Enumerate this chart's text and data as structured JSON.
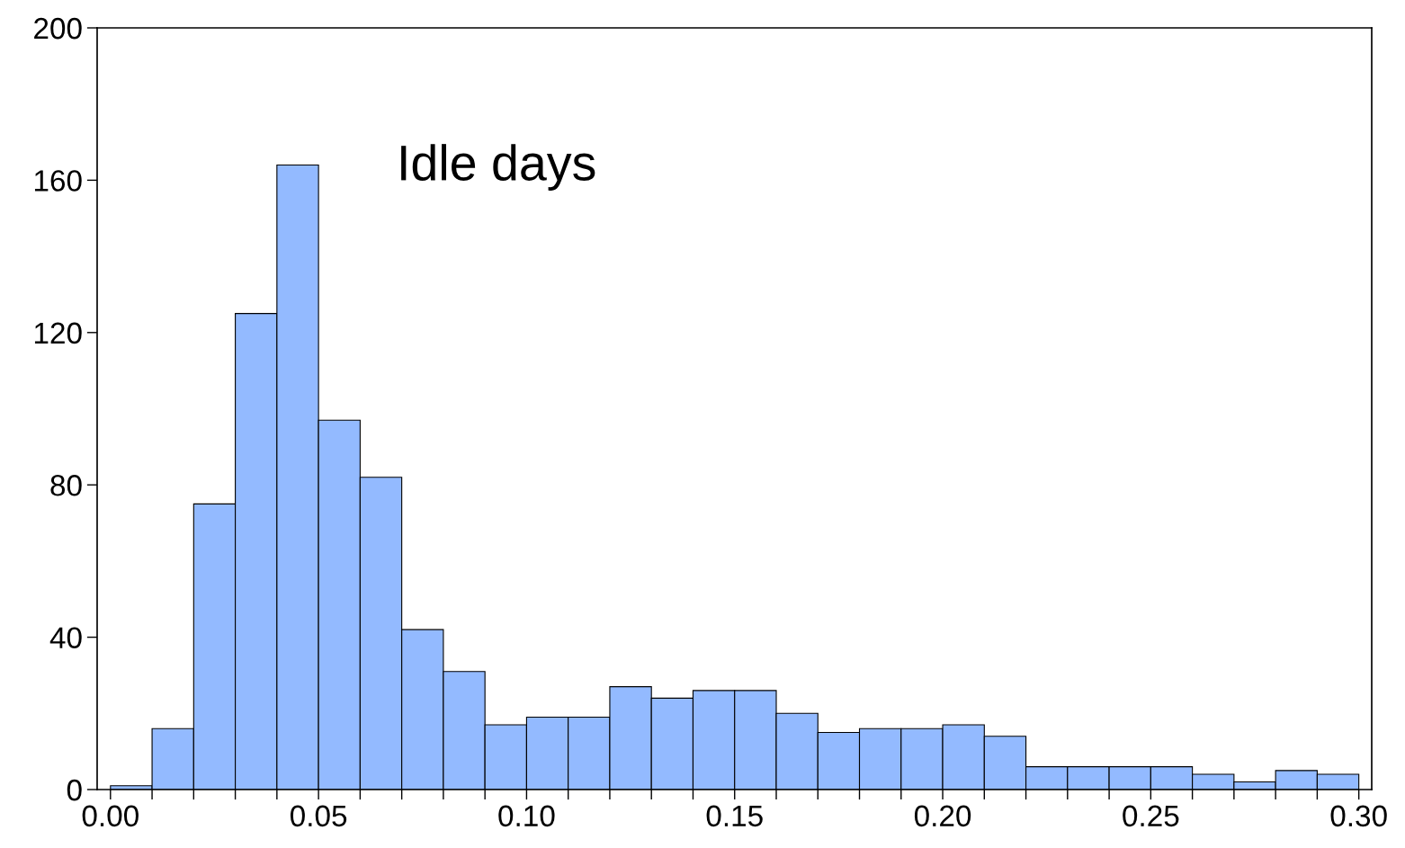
{
  "chart_data": {
    "type": "histogram",
    "bins": [
      0.0,
      0.01,
      0.02,
      0.03,
      0.04,
      0.05,
      0.06,
      0.07,
      0.08,
      0.09,
      0.1,
      0.11,
      0.12,
      0.13,
      0.14,
      0.15,
      0.16,
      0.17,
      0.18,
      0.19,
      0.2,
      0.21,
      0.22,
      0.23,
      0.24,
      0.25,
      0.26,
      0.27,
      0.28,
      0.29,
      0.3
    ],
    "values": [
      1,
      16,
      75,
      125,
      164,
      97,
      82,
      42,
      31,
      17,
      19,
      19,
      27,
      24,
      26,
      26,
      20,
      15,
      16,
      16,
      17,
      14,
      6,
      6,
      6,
      6,
      4,
      2,
      5,
      4
    ],
    "color": "#93baff",
    "annotations": [
      "Idle days"
    ],
    "xlim": [
      -0.0032,
      0.3031
    ],
    "ylim": [
      0,
      200
    ],
    "xticks": [
      {
        "value": 0.0,
        "label": "0.00"
      },
      {
        "value": 0.01,
        "label": null
      },
      {
        "value": 0.02,
        "label": null
      },
      {
        "value": 0.03,
        "label": null
      },
      {
        "value": 0.04,
        "label": null
      },
      {
        "value": 0.05,
        "label": "0.05"
      },
      {
        "value": 0.06,
        "label": null
      },
      {
        "value": 0.07,
        "label": null
      },
      {
        "value": 0.08,
        "label": null
      },
      {
        "value": 0.09,
        "label": null
      },
      {
        "value": 0.1,
        "label": "0.10"
      },
      {
        "value": 0.11,
        "label": null
      },
      {
        "value": 0.12,
        "label": null
      },
      {
        "value": 0.13,
        "label": null
      },
      {
        "value": 0.14,
        "label": null
      },
      {
        "value": 0.15,
        "label": "0.15"
      },
      {
        "value": 0.16,
        "label": null
      },
      {
        "value": 0.17,
        "label": null
      },
      {
        "value": 0.18,
        "label": null
      },
      {
        "value": 0.19,
        "label": null
      },
      {
        "value": 0.2,
        "label": "0.20"
      },
      {
        "value": 0.21,
        "label": null
      },
      {
        "value": 0.22,
        "label": null
      },
      {
        "value": 0.23,
        "label": null
      },
      {
        "value": 0.24,
        "label": null
      },
      {
        "value": 0.25,
        "label": "0.25"
      },
      {
        "value": 0.26,
        "label": null
      },
      {
        "value": 0.27,
        "label": null
      },
      {
        "value": 0.28,
        "label": null
      },
      {
        "value": 0.29,
        "label": null
      },
      {
        "value": 0.3,
        "label": "0.30"
      }
    ],
    "yticks": [
      0,
      40,
      80,
      120,
      160,
      200
    ],
    "grid": false,
    "legend": false
  }
}
